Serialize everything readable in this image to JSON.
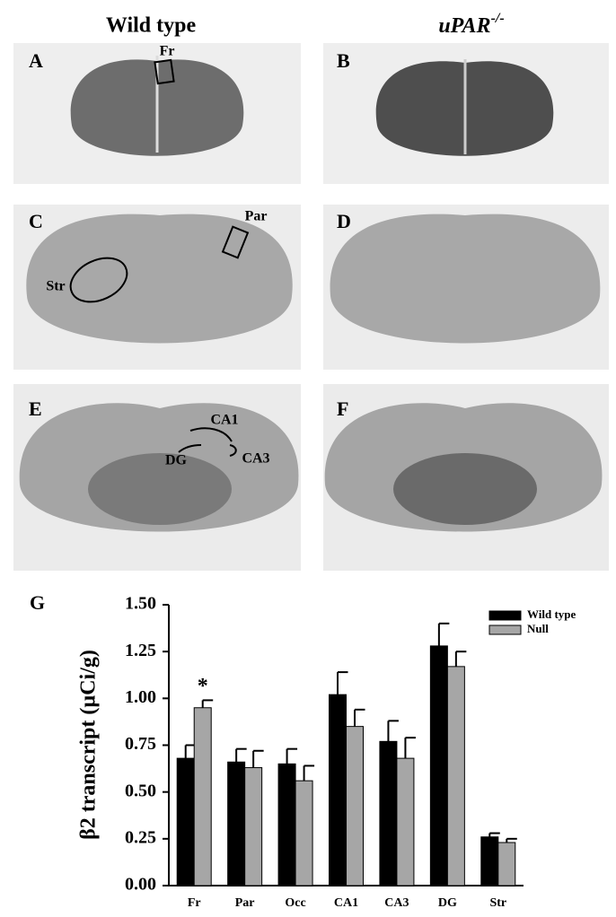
{
  "figure": {
    "column_titles": [
      {
        "text": "Wild type"
      },
      {
        "text": "uPAR",
        "superscript": "-/-"
      }
    ],
    "panel_letters": [
      "A",
      "B",
      "C",
      "D",
      "E",
      "F"
    ],
    "region_labels": [
      "Fr",
      "Par",
      "Str",
      "CA1",
      "DG",
      "CA3"
    ]
  },
  "chart_data": {
    "type": "bar",
    "panel_letter": "G",
    "y_label": "β2 transcript (µCi/g)",
    "categories": [
      "Fr",
      "Par",
      "Occ",
      "CA1",
      "CA3",
      "DG",
      "Str"
    ],
    "series": [
      {
        "name": "Wild type",
        "color": "#000000",
        "values": [
          0.68,
          0.66,
          0.65,
          1.02,
          0.77,
          1.28,
          0.26
        ],
        "errors": [
          0.07,
          0.07,
          0.08,
          0.12,
          0.11,
          0.12,
          0.02
        ]
      },
      {
        "name": "Null",
        "color": "#a6a6a6",
        "values": [
          0.95,
          0.63,
          0.56,
          0.85,
          0.68,
          1.17,
          0.23
        ],
        "errors": [
          0.04,
          0.09,
          0.08,
          0.09,
          0.11,
          0.08,
          0.02
        ]
      }
    ],
    "annotations": [
      {
        "text": "*",
        "category": 0,
        "series": 1
      }
    ],
    "ylim": [
      0,
      1.5
    ],
    "yticks": [
      {
        "value": 0,
        "label": "0.00"
      },
      {
        "value": 0.25,
        "label": "0.25"
      },
      {
        "value": 0.5,
        "label": "0.50"
      },
      {
        "value": 0.75,
        "label": "0.75"
      },
      {
        "value": 1,
        "label": "1.00"
      },
      {
        "value": 1.25,
        "label": "1.25"
      },
      {
        "value": 1.5,
        "label": "1.50"
      }
    ],
    "legend": "top-right"
  }
}
